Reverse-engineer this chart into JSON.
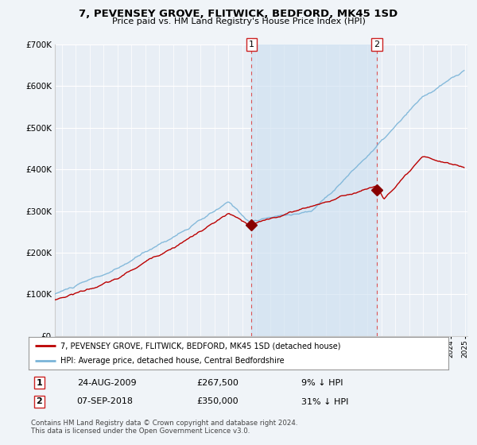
{
  "title": "7, PEVENSEY GROVE, FLITWICK, BEDFORD, MK45 1SD",
  "subtitle": "Price paid vs. HM Land Registry's House Price Index (HPI)",
  "ylim": [
    0,
    700000
  ],
  "xlim_start": 1995.5,
  "xlim_end": 2025.2,
  "background_color": "#f0f4f8",
  "plot_bg_color": "#e8eef5",
  "grid_color": "#ffffff",
  "transaction1_x": 2009.646,
  "transaction1_y": 267500,
  "transaction2_x": 2018.686,
  "transaction2_y": 350000,
  "transaction1_label": "24-AUG-2009",
  "transaction1_price": "£267,500",
  "transaction1_info": "9% ↓ HPI",
  "transaction2_label": "07-SEP-2018",
  "transaction2_price": "£350,000",
  "transaction2_info": "31% ↓ HPI",
  "legend_line1": "7, PEVENSEY GROVE, FLITWICK, BEDFORD, MK45 1SD (detached house)",
  "legend_line2": "HPI: Average price, detached house, Central Bedfordshire",
  "footer": "Contains HM Land Registry data © Crown copyright and database right 2024.\nThis data is licensed under the Open Government Licence v3.0.",
  "hpi_color": "#7ab4d8",
  "property_color": "#bb0000",
  "dashed_line_color": "#dd4444",
  "fill_color": "#ccdff0",
  "fill_alpha": 0.6
}
